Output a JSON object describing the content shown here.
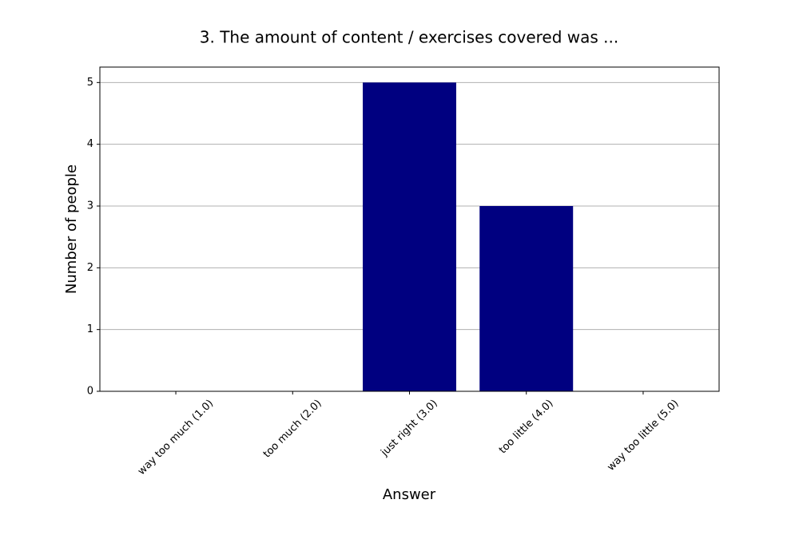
{
  "chart_data": {
    "type": "bar",
    "title": "3. The amount of content / exercises covered was ...",
    "x_label": "Answer",
    "y_label": "Number of people",
    "categories": [
      "way too much (1.0)",
      "too much (2.0)",
      "just right (3.0)",
      "too little (4.0)",
      "way too little (5.0)"
    ],
    "values": [
      0,
      0,
      5,
      3,
      0
    ],
    "color": "#000080",
    "ylim": [
      0,
      5.25
    ],
    "yticks": [
      0,
      1,
      2,
      3,
      4,
      5
    ],
    "grid": true
  }
}
